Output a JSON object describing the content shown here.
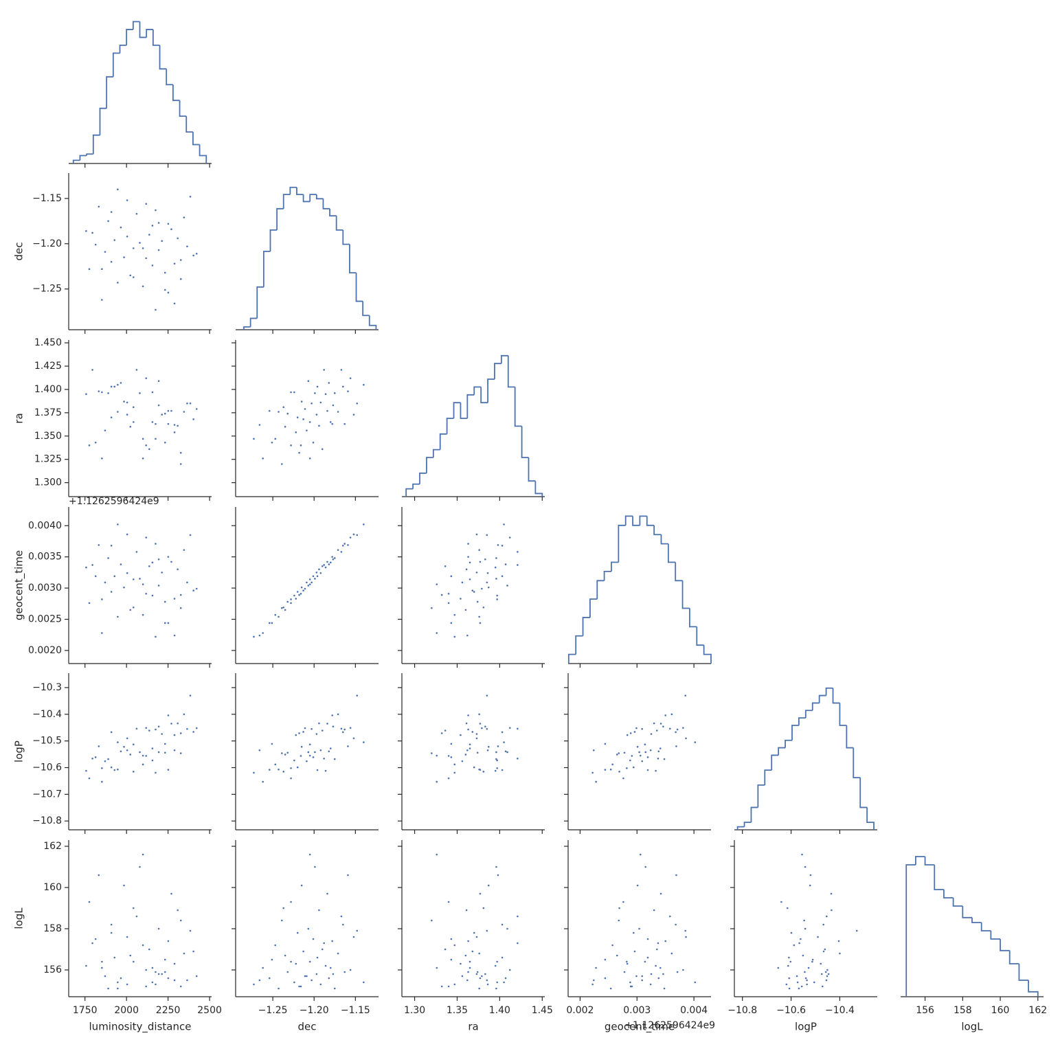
{
  "chart_data": {
    "type": "corner",
    "color": "#4c72b0",
    "offset_label": "+1.1262596424e9",
    "parameters": [
      {
        "name": "luminosity_distance",
        "lim": [
          1652,
          2512
        ],
        "xticks": [
          1750,
          2000,
          2250,
          2500
        ],
        "samples": [
          2175,
          1852,
          2251,
          2099,
          1947,
          2327,
          2023,
          2232,
          1776,
          2156,
          2289,
          1909,
          2118,
          1985,
          2403,
          1871,
          2194,
          2042,
          2365,
          1814,
          2080,
          2213,
          1928,
          2308,
          2004,
          2137,
          1757,
          2270,
          1966,
          2251,
          1890,
          2346,
          2061,
          2175,
          1833,
          2118,
          2384,
          1947,
          2232,
          2042,
          2327,
          1795,
          2156,
          1909,
          2422,
          2099,
          1852,
          2194,
          2004,
          2289
        ],
        "hist": {
          "bins": [
            1680,
            1720,
            1760,
            1800,
            1840,
            1880,
            1920,
            1960,
            2000,
            2040,
            2080,
            2120,
            2160,
            2200,
            2240,
            2280,
            2320,
            2360,
            2400,
            2440,
            2480
          ],
          "counts": [
            2,
            5,
            6,
            18,
            35,
            55,
            70,
            75,
            85,
            90,
            80,
            85,
            75,
            60,
            50,
            40,
            30,
            20,
            12,
            5
          ],
          "ylim": [
            0,
            95
          ]
        }
      },
      {
        "name": "dec",
        "lim": [
          -1.295,
          -1.122
        ],
        "xticks": [
          {
            "value": -1.25,
            "label": "−1.25"
          },
          {
            "value": -1.2,
            "label": "−1.20"
          },
          {
            "value": -1.15,
            "label": "−1.15"
          }
        ],
        "yticks": [
          {
            "value": -1.25,
            "label": "−1.25"
          },
          {
            "value": -1.2,
            "label": "−1.20"
          },
          {
            "value": -1.15,
            "label": "−1.15"
          }
        ],
        "samples": [
          -1.273,
          -1.262,
          -1.254,
          -1.247,
          -1.243,
          -1.239,
          -1.235,
          -1.232,
          -1.228,
          -1.224,
          -1.222,
          -1.22,
          -1.216,
          -1.215,
          -1.213,
          -1.209,
          -1.207,
          -1.205,
          -1.203,
          -1.201,
          -1.199,
          -1.197,
          -1.196,
          -1.194,
          -1.192,
          -1.19,
          -1.186,
          -1.184,
          -1.182,
          -1.178,
          -1.175,
          -1.171,
          -1.167,
          -1.163,
          -1.159,
          -1.156,
          -1.148,
          -1.14,
          -1.251,
          -1.237,
          -1.218,
          -1.188,
          -1.18,
          -1.165,
          -1.211,
          -1.205,
          -1.228,
          -1.177,
          -1.152,
          -1.266
        ],
        "hist": {
          "bins": [
            -1.285,
            -1.277,
            -1.269,
            -1.261,
            -1.253,
            -1.245,
            -1.237,
            -1.229,
            -1.221,
            -1.213,
            -1.205,
            -1.197,
            -1.189,
            -1.181,
            -1.173,
            -1.165,
            -1.157,
            -1.149,
            -1.141,
            -1.133,
            -1.125
          ],
          "counts": [
            2,
            8,
            30,
            55,
            70,
            85,
            95,
            100,
            95,
            90,
            95,
            92,
            85,
            80,
            70,
            60,
            40,
            20,
            10,
            3
          ],
          "ylim": [
            0,
            110
          ]
        }
      },
      {
        "name": "ra",
        "lim": [
          1.285,
          1.453
        ],
        "xticks": [
          {
            "value": 1.3,
            "label": "1.30"
          },
          1.35,
          {
            "value": 1.4,
            "label": "1.40"
          },
          1.45
        ],
        "yticks": [
          {
            "value": 1.3,
            "label": "1.300"
          },
          1.325,
          {
            "value": 1.35,
            "label": "1.350"
          },
          1.375,
          {
            "value": 1.4,
            "label": "1.400"
          },
          1.425,
          {
            "value": 1.45,
            "label": "1.450"
          }
        ],
        "samples": [
          1.347,
          1.326,
          1.377,
          1.347,
          1.376,
          1.32,
          1.36,
          1.374,
          1.34,
          1.397,
          1.354,
          1.37,
          1.34,
          1.387,
          1.368,
          1.356,
          1.409,
          1.365,
          1.385,
          1.343,
          1.396,
          1.373,
          1.403,
          1.361,
          1.386,
          1.336,
          1.395,
          1.377,
          1.407,
          1.363,
          1.396,
          1.376,
          1.421,
          1.363,
          1.398,
          1.412,
          1.385,
          1.405,
          1.343,
          1.381,
          1.332,
          1.421,
          1.365,
          1.403,
          1.379,
          1.326,
          1.397,
          1.383,
          1.373,
          1.362
        ],
        "hist": {
          "bins": [
            1.29,
            1.298,
            1.306,
            1.314,
            1.322,
            1.33,
            1.338,
            1.346,
            1.354,
            1.362,
            1.37,
            1.378,
            1.386,
            1.394,
            1.402,
            1.41,
            1.418,
            1.426,
            1.434,
            1.442,
            1.45
          ],
          "counts": [
            5,
            8,
            15,
            25,
            30,
            40,
            50,
            60,
            50,
            65,
            70,
            60,
            75,
            85,
            90,
            70,
            45,
            25,
            10,
            2
          ],
          "ylim": [
            0,
            100
          ]
        }
      },
      {
        "name": "geocent_time",
        "lim": [
          0.00179,
          0.0043
        ],
        "xticks": [
          0.002,
          0.003,
          0.004
        ],
        "yticks": [
          {
            "value": 0.002,
            "label": "0.0020"
          },
          0.0025,
          {
            "value": 0.003,
            "label": "0.0030"
          },
          0.0035,
          {
            "value": 0.004,
            "label": "0.0040"
          }
        ],
        "samples": [
          0.00222,
          0.00228,
          0.00244,
          0.00257,
          0.00254,
          0.00268,
          0.00265,
          0.00278,
          0.00276,
          0.00288,
          0.00283,
          0.00294,
          0.00291,
          0.00301,
          0.00296,
          0.00309,
          0.00304,
          0.00314,
          0.00309,
          0.00319,
          0.00315,
          0.00325,
          0.00319,
          0.0033,
          0.00324,
          0.00335,
          0.00333,
          0.00342,
          0.00338,
          0.0035,
          0.00348,
          0.00361,
          0.00358,
          0.00371,
          0.00369,
          0.00381,
          0.00385,
          0.00402,
          0.00244,
          0.00269,
          0.00289,
          0.00337,
          0.00341,
          0.00368,
          0.00299,
          0.00306,
          0.00282,
          0.00346,
          0.00386,
          0.00224
        ],
        "hist": {
          "bins": [
            0.0018,
            0.001925,
            0.00205,
            0.002175,
            0.0023,
            0.002425,
            0.00255,
            0.002675,
            0.0028,
            0.002925,
            0.00305,
            0.003175,
            0.0033,
            0.003425,
            0.00355,
            0.003675,
            0.0038,
            0.003925,
            0.00405,
            0.004175,
            0.0043
          ],
          "counts": [
            5,
            15,
            25,
            35,
            45,
            50,
            55,
            75,
            80,
            75,
            80,
            75,
            70,
            65,
            55,
            45,
            30,
            20,
            10,
            5
          ],
          "ylim": [
            0,
            85
          ]
        }
      },
      {
        "name": "logP",
        "lim": [
          -10.833,
          -10.246
        ],
        "xticks": [
          {
            "value": -10.8,
            "label": "−10.8"
          },
          {
            "value": -10.6,
            "label": "−10.6"
          },
          {
            "value": -10.4,
            "label": "−10.4"
          }
        ],
        "yticks": [
          {
            "value": -10.8,
            "label": "−10.8"
          },
          {
            "value": -10.7,
            "label": "−10.7"
          },
          {
            "value": -10.6,
            "label": "−10.6"
          },
          {
            "value": -10.5,
            "label": "−10.5"
          },
          {
            "value": -10.4,
            "label": "−10.4"
          },
          {
            "value": -10.3,
            "label": "−10.3"
          }
        ],
        "samples": [
          -10.619,
          -10.653,
          -10.608,
          -10.588,
          -10.607,
          -10.546,
          -10.551,
          -10.544,
          -10.64,
          -10.573,
          -10.478,
          -10.599,
          -10.556,
          -10.522,
          -10.466,
          -10.576,
          -10.542,
          -10.513,
          -10.455,
          -10.561,
          -10.542,
          -10.474,
          -10.609,
          -10.434,
          -10.535,
          -10.461,
          -10.612,
          -10.435,
          -10.539,
          -10.404,
          -10.568,
          -10.4,
          -10.454,
          -10.457,
          -10.52,
          -10.451,
          -10.33,
          -10.505,
          -10.511,
          -10.615,
          -10.471,
          -10.566,
          -10.528,
          -10.467,
          -10.452,
          -10.555,
          -10.602,
          -10.446,
          -10.49,
          -10.535
        ],
        "hist": {
          "bins": [
            -10.82,
            -10.792,
            -10.764,
            -10.736,
            -10.708,
            -10.68,
            -10.652,
            -10.624,
            -10.596,
            -10.568,
            -10.54,
            -10.512,
            -10.484,
            -10.456,
            -10.428,
            -10.4,
            -10.372,
            -10.344,
            -10.316,
            -10.288,
            -10.26
          ],
          "counts": [
            2,
            5,
            15,
            30,
            40,
            50,
            55,
            60,
            70,
            75,
            80,
            85,
            90,
            95,
            85,
            70,
            55,
            35,
            15,
            5
          ],
          "ylim": [
            0,
            105
          ]
        }
      },
      {
        "name": "logL",
        "lim": [
          154.7,
          162.3
        ],
        "xticks": [
          156,
          158,
          160,
          162
        ],
        "yticks": [
          156,
          158,
          160,
          162
        ],
        "samples": [
          155.3,
          156.1,
          155.6,
          157.2,
          155.1,
          158.4,
          156.7,
          155.9,
          159.3,
          155.4,
          156.3,
          157.8,
          155.2,
          160.1,
          156.9,
          155.7,
          158.0,
          156.4,
          155.5,
          157.5,
          161.0,
          155.8,
          156.6,
          158.9,
          155.3,
          157.0,
          156.2,
          159.7,
          155.6,
          157.4,
          155.1,
          156.8,
          158.6,
          155.9,
          160.6,
          156.0,
          157.9,
          155.4,
          156.5,
          159.0,
          155.2,
          157.3,
          156.1,
          158.2,
          155.7,
          161.6,
          156.4,
          155.8,
          157.6,
          155.5
        ],
        "hist": {
          "bins": [
            155,
            155.5,
            156,
            156.5,
            157,
            157.5,
            158,
            158.5,
            159,
            159.5,
            160,
            160.5,
            161,
            161.5,
            162
          ],
          "counts": [
            80,
            85,
            80,
            65,
            60,
            55,
            48,
            45,
            40,
            35,
            28,
            20,
            10,
            3
          ],
          "ylim": [
            0,
            95
          ]
        }
      }
    ]
  }
}
